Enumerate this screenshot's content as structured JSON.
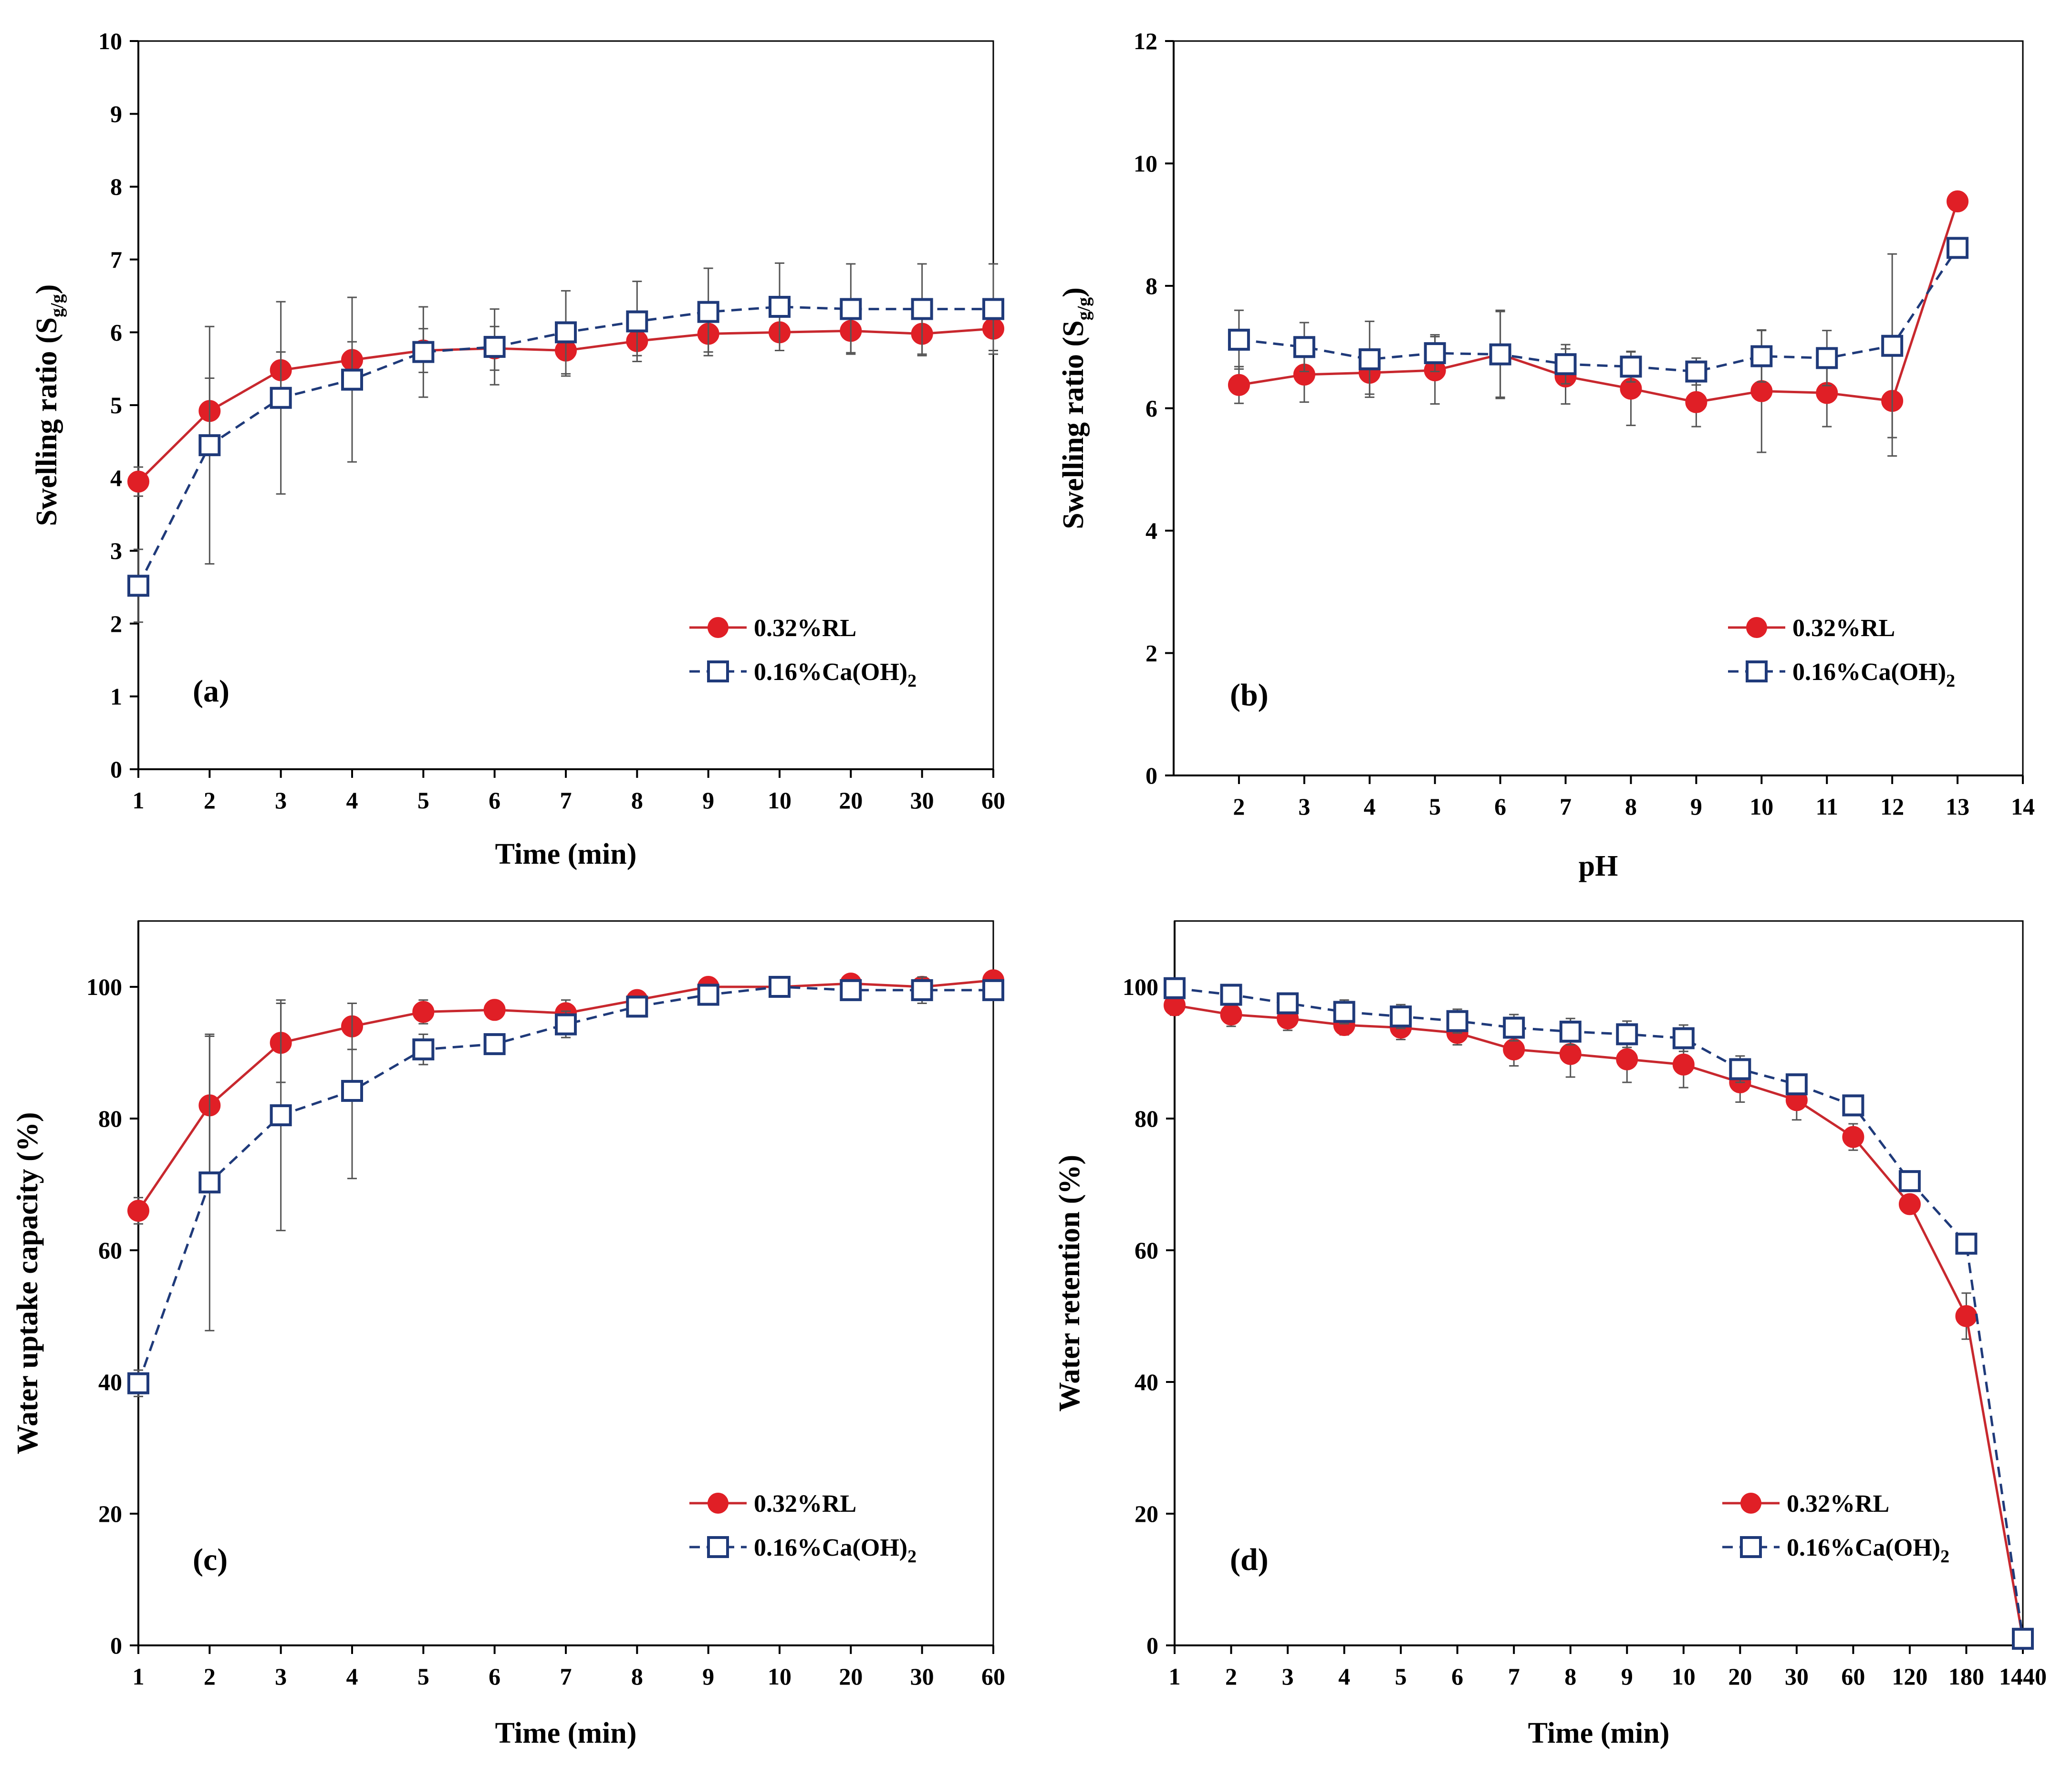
{
  "colors": {
    "rl": "#e01f26",
    "rl_line": "#c8282e",
    "ca": "#1f3a7a",
    "errorbar": "#555555",
    "axis": "#000000"
  },
  "chart_data": [
    {
      "id": "a",
      "type": "line",
      "panel_label": "(a)",
      "xlabel": "Time (min)",
      "ylabel": "Swelling ratio (S",
      "ylabel_sub": "g/g",
      "ylabel_close": ")",
      "x_scale": "categorical",
      "categories": [
        "1",
        "2",
        "3",
        "4",
        "5",
        "6",
        "7",
        "8",
        "9",
        "10",
        "20",
        "30",
        "60"
      ],
      "ylim": [
        0,
        10
      ],
      "yticks": [
        0,
        1,
        2,
        3,
        4,
        5,
        6,
        7,
        8,
        9,
        10
      ],
      "legend_position": "bottom-right",
      "series": [
        {
          "name": "0.32%RL",
          "key": "rl",
          "marker": "filled-circle",
          "line": "solid",
          "values": [
            3.95,
            4.92,
            5.48,
            5.62,
            5.75,
            5.78,
            5.75,
            5.88,
            5.98,
            6.0,
            6.02,
            5.98,
            6.05
          ],
          "errors": [
            0.2,
            0.45,
            0.25,
            0.25,
            0.3,
            0.3,
            0.35,
            0.2,
            0.25,
            0.25,
            0.3,
            0.3,
            0.3
          ]
        },
        {
          "name": "0.16%Ca(OH)",
          "name_sub": "2",
          "key": "ca",
          "marker": "open-square",
          "line": "dashed",
          "values": [
            2.52,
            4.45,
            5.1,
            5.35,
            5.73,
            5.8,
            6.0,
            6.15,
            6.28,
            6.35,
            6.32,
            6.32,
            6.32
          ],
          "errors": [
            0.5,
            1.63,
            1.32,
            1.13,
            0.62,
            0.52,
            0.57,
            0.55,
            0.6,
            0.6,
            0.62,
            0.62,
            0.62
          ]
        }
      ]
    },
    {
      "id": "b",
      "type": "line",
      "panel_label": "(b)",
      "xlabel": "pH",
      "ylabel": "Swelling ratio (S",
      "ylabel_sub": "g/g",
      "ylabel_close": ")",
      "x_scale": "linear",
      "xlim": [
        1,
        14
      ],
      "xticks": [
        2,
        3,
        4,
        5,
        6,
        7,
        8,
        9,
        10,
        11,
        12,
        13,
        14
      ],
      "ylim": [
        0,
        12
      ],
      "yticks": [
        0,
        2,
        4,
        6,
        8,
        10,
        12
      ],
      "legend_position": "bottom-right",
      "series": [
        {
          "name": "0.32%RL",
          "key": "rl",
          "marker": "filled-circle",
          "line": "solid",
          "x": [
            2,
            3,
            4,
            5,
            6,
            7,
            8,
            9,
            10,
            11,
            12,
            13
          ],
          "values": [
            6.38,
            6.55,
            6.58,
            6.62,
            6.88,
            6.52,
            6.32,
            6.1,
            6.28,
            6.25,
            6.12,
            9.38
          ],
          "errors": [
            0.3,
            0.45,
            0.35,
            0.55,
            0.7,
            0.45,
            0.6,
            0.4,
            1.0,
            0.55,
            0.9,
            0.1
          ]
        },
        {
          "name": "0.16%Ca(OH)",
          "name_sub": "2",
          "key": "ca",
          "marker": "open-square",
          "line": "dashed",
          "x": [
            2,
            3,
            4,
            5,
            6,
            7,
            8,
            9,
            10,
            11,
            12,
            13
          ],
          "values": [
            7.12,
            7.0,
            6.8,
            6.9,
            6.88,
            6.72,
            6.68,
            6.6,
            6.85,
            6.82,
            7.02,
            8.62
          ],
          "errors": [
            0.48,
            0.4,
            0.62,
            0.3,
            0.72,
            0.32,
            0.25,
            0.22,
            0.42,
            0.45,
            1.5,
            0.1
          ]
        }
      ]
    },
    {
      "id": "c",
      "type": "line",
      "panel_label": "(c)",
      "xlabel": "Time (min)",
      "ylabel": "Water uptake capacity (%)",
      "x_scale": "categorical",
      "categories": [
        "1",
        "2",
        "3",
        "4",
        "5",
        "6",
        "7",
        "8",
        "9",
        "10",
        "20",
        "30",
        "60"
      ],
      "ylim": [
        0,
        110
      ],
      "yticks": [
        0,
        20,
        40,
        60,
        80,
        100
      ],
      "legend_position": "bottom-right",
      "series": [
        {
          "name": "0.32%RL",
          "key": "rl",
          "marker": "filled-circle",
          "line": "solid",
          "values": [
            66,
            82,
            91.5,
            94,
            96.2,
            96.5,
            96,
            98,
            100,
            100,
            100.5,
            100,
            101
          ],
          "errors": [
            2,
            10.5,
            6,
            3.5,
            1.8,
            1,
            2,
            1,
            0.5,
            0.5,
            0.5,
            0.5,
            0.5
          ]
        },
        {
          "name": "0.16%Ca(OH)",
          "name_sub": "2",
          "key": "ca",
          "marker": "open-square",
          "line": "dashed",
          "values": [
            39.8,
            70.3,
            80.5,
            84.2,
            90.5,
            91.3,
            94.3,
            97,
            98.8,
            100,
            99.5,
            99.5,
            99.5
          ],
          "errors": [
            2,
            22.5,
            17.5,
            13.3,
            2.3,
            1.5,
            2,
            1.3,
            1,
            0.5,
            1,
            2,
            1
          ]
        }
      ]
    },
    {
      "id": "d",
      "type": "line",
      "panel_label": "(d)",
      "xlabel": "Time (min)",
      "ylabel": "Water retention (%)",
      "x_scale": "categorical",
      "categories": [
        "1",
        "2",
        "3",
        "4",
        "5",
        "6",
        "7",
        "8",
        "9",
        "10",
        "20",
        "30",
        "60",
        "120",
        "180",
        "1440"
      ],
      "ylim": [
        0,
        110
      ],
      "yticks": [
        0,
        20,
        40,
        60,
        80,
        100
      ],
      "legend_position": "bottom-right",
      "series": [
        {
          "name": "0.32%RL",
          "key": "rl",
          "marker": "filled-circle",
          "line": "solid",
          "values": [
            97.2,
            95.8,
            95.2,
            94.2,
            93.8,
            93.0,
            90.5,
            89.8,
            89.0,
            88.2,
            85.5,
            82.8,
            77.2,
            67.0,
            50.0,
            1.0
          ],
          "errors": [
            1.5,
            1.8,
            1.8,
            1.5,
            1.8,
            1.8,
            2.5,
            3.5,
            3.5,
            3.5,
            3,
            3,
            2,
            1,
            3.5,
            0.5
          ]
        },
        {
          "name": "0.16%Ca(OH)",
          "name_sub": "2",
          "key": "ca",
          "marker": "open-square",
          "line": "dashed",
          "values": [
            99.8,
            98.8,
            97.5,
            96.2,
            95.5,
            94.8,
            93.8,
            93.2,
            92.8,
            92.2,
            87.5,
            85.2,
            82.0,
            70.5,
            61.0,
            1.0
          ],
          "errors": [
            0.8,
            0.8,
            1.5,
            1.8,
            1.8,
            1.8,
            2,
            2,
            2,
            2,
            2,
            1.5,
            1,
            1,
            1.5,
            0.5
          ]
        }
      ]
    }
  ]
}
